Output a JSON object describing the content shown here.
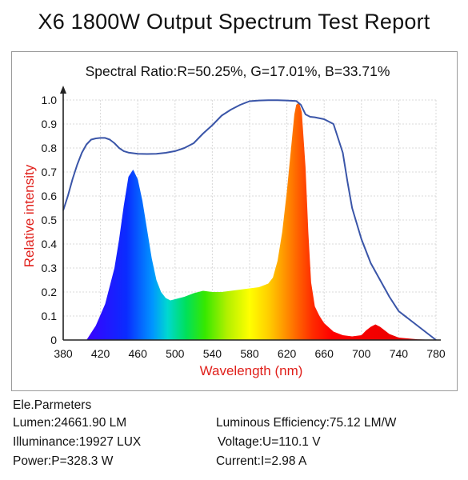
{
  "page_title": "X6 1800W Output Spectrum Test Report",
  "chart_data": {
    "type": "area",
    "title": "Spectral Ratio:R=50.25%, G=17.01%, B=33.71%",
    "xlabel": "Wavelength (nm)",
    "ylabel": "Relative intensity",
    "xlim": [
      380,
      780
    ],
    "ylim": [
      0,
      1.0
    ],
    "xticks": [
      380,
      420,
      460,
      500,
      540,
      580,
      620,
      660,
      700,
      740,
      780
    ],
    "yticks": [
      0,
      0.1,
      0.2,
      0.3,
      0.4,
      0.5,
      0.6,
      0.7,
      0.8,
      0.9,
      1.0
    ],
    "ytick_labels": [
      "0",
      "0.1",
      "0.2",
      "0.3",
      "0.4",
      "0.5",
      "0.6",
      "0.7",
      "0.8",
      "0.9",
      "1.0"
    ],
    "grid": true,
    "colors": {
      "outline": "#3a55a8",
      "axis": "#222222",
      "grid": "#d8d8d8",
      "ylabel": "#e0201b",
      "xlabel": "#e0201b"
    },
    "series": [
      {
        "kind": "filled-spectrum",
        "x": [
          405,
          415,
          425,
          435,
          440,
          445,
          450,
          455,
          460,
          465,
          470,
          475,
          480,
          485,
          490,
          495,
          500,
          510,
          520,
          530,
          540,
          550,
          560,
          570,
          580,
          590,
          600,
          605,
          610,
          615,
          620,
          625,
          628,
          630,
          633,
          636,
          640,
          643,
          646,
          650,
          655,
          660,
          670,
          680,
          690,
          700,
          705,
          710,
          715,
          720,
          730,
          740,
          760,
          780
        ],
        "y": [
          0.0,
          0.06,
          0.15,
          0.3,
          0.42,
          0.56,
          0.68,
          0.71,
          0.67,
          0.58,
          0.46,
          0.34,
          0.25,
          0.2,
          0.175,
          0.165,
          0.17,
          0.18,
          0.195,
          0.205,
          0.2,
          0.2,
          0.205,
          0.21,
          0.215,
          0.22,
          0.235,
          0.26,
          0.33,
          0.45,
          0.62,
          0.82,
          0.94,
          0.98,
          0.99,
          0.95,
          0.72,
          0.45,
          0.24,
          0.14,
          0.1,
          0.07,
          0.035,
          0.02,
          0.015,
          0.02,
          0.04,
          0.055,
          0.065,
          0.055,
          0.025,
          0.01,
          0.003,
          0.0
        ]
      },
      {
        "kind": "outline",
        "x": [
          380,
          385,
          390,
          395,
          400,
          405,
          410,
          415,
          420,
          425,
          430,
          435,
          440,
          445,
          450,
          460,
          470,
          480,
          490,
          500,
          510,
          520,
          530,
          540,
          545,
          550,
          560,
          570,
          580,
          590,
          600,
          610,
          620,
          630,
          635,
          640,
          645,
          650,
          660,
          670,
          680,
          685,
          690,
          700,
          710,
          720,
          730,
          740,
          750,
          760,
          770,
          780
        ],
        "y": [
          0.54,
          0.6,
          0.67,
          0.73,
          0.78,
          0.815,
          0.835,
          0.84,
          0.842,
          0.842,
          0.835,
          0.82,
          0.8,
          0.787,
          0.781,
          0.776,
          0.775,
          0.776,
          0.78,
          0.787,
          0.8,
          0.82,
          0.86,
          0.895,
          0.915,
          0.935,
          0.96,
          0.98,
          0.995,
          0.998,
          0.999,
          0.999,
          0.998,
          0.996,
          0.98,
          0.94,
          0.93,
          0.928,
          0.92,
          0.9,
          0.78,
          0.66,
          0.55,
          0.42,
          0.32,
          0.25,
          0.18,
          0.12,
          0.09,
          0.06,
          0.03,
          0.0
        ]
      }
    ]
  },
  "params": {
    "heading": "Ele.Parmeters",
    "lumen": "Lumen:24661.90 LM",
    "illuminance": "Illuminance:19927 LUX",
    "power": "Power:P=328.3 W",
    "efficiency": "Luminous Efficiency:75.12 LM/W",
    "voltage": "Voltage:U=110.1 V",
    "current": "Current:I=2.98 A"
  }
}
